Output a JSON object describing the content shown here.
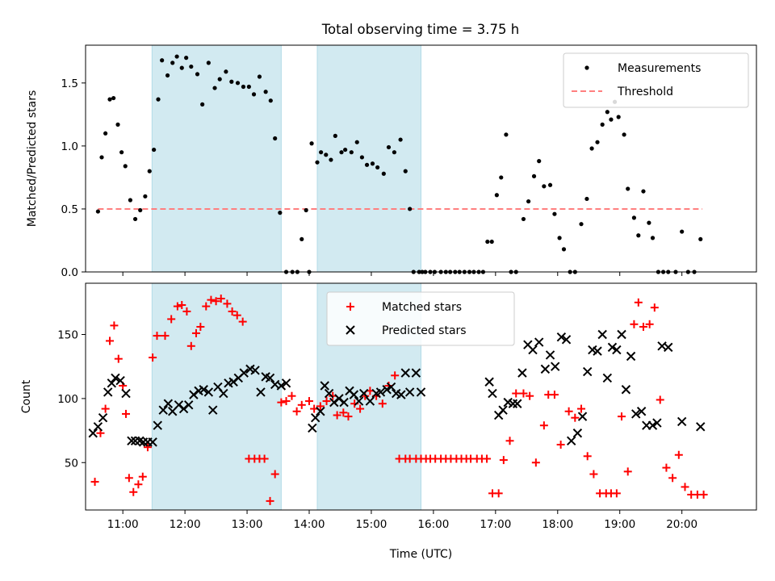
{
  "figure": {
    "title": "Total observing time = 3.75 h"
  },
  "colors": {
    "shade": "#add8e6",
    "measurement": "#000000",
    "threshold": "#ff7f7f",
    "matched": "#ff0000",
    "predicted": "#000000"
  },
  "chart_data": [
    {
      "type": "scatter",
      "ylabel": "Matched/Predicted stars",
      "xlabel": "",
      "xlim": [
        10.4,
        21.2
      ],
      "ylim": [
        0.0,
        1.8
      ],
      "yticks": [
        0.0,
        0.5,
        1.0,
        1.5
      ],
      "xticks": [
        11,
        12,
        13,
        14,
        15,
        16,
        17,
        18,
        19,
        20
      ],
      "shaded_spans": [
        [
          11.47,
          13.55
        ],
        [
          14.13,
          15.8
        ]
      ],
      "legend": {
        "position": "upper right",
        "entries": [
          "Measurements",
          "Threshold"
        ]
      },
      "threshold": {
        "name": "Threshold",
        "x": [
          10.6,
          20.33
        ],
        "y": 0.5
      },
      "series": [
        {
          "name": "Measurements",
          "x": [
            10.6,
            10.66,
            10.72,
            10.79,
            10.85,
            10.92,
            10.98,
            11.04,
            11.12,
            11.2,
            11.28,
            11.36,
            11.43,
            11.5,
            11.57,
            11.63,
            11.72,
            11.8,
            11.87,
            11.95,
            12.02,
            12.1,
            12.2,
            12.28,
            12.38,
            12.48,
            12.56,
            12.66,
            12.75,
            12.85,
            12.94,
            13.03,
            13.11,
            13.2,
            13.3,
            13.38,
            13.45,
            13.53,
            13.63,
            13.73,
            13.81,
            13.88,
            13.95,
            14.0,
            14.04,
            14.13,
            14.19,
            14.27,
            14.35,
            14.42,
            14.52,
            14.58,
            14.68,
            14.77,
            14.85,
            14.93,
            15.02,
            15.1,
            15.2,
            15.28,
            15.37,
            15.47,
            15.55,
            15.62,
            15.68,
            15.77,
            15.82,
            15.87,
            15.95,
            16.02,
            16.12,
            16.2,
            16.27,
            16.35,
            16.42,
            16.5,
            16.58,
            16.65,
            16.73,
            16.8,
            16.87,
            16.94,
            17.02,
            17.09,
            17.17,
            17.25,
            17.33,
            17.45,
            17.53,
            17.62,
            17.7,
            17.78,
            17.88,
            17.95,
            18.03,
            18.1,
            18.2,
            18.28,
            18.38,
            18.47,
            18.55,
            18.64,
            18.72,
            18.8,
            18.86,
            18.92,
            18.98,
            19.07,
            19.13,
            19.23,
            19.3,
            19.38,
            19.47,
            19.53,
            19.62,
            19.7,
            19.78,
            19.9,
            20.0,
            20.1,
            20.2,
            20.3
          ],
          "y": [
            0.48,
            0.91,
            1.1,
            1.37,
            1.38,
            1.17,
            0.95,
            0.84,
            0.57,
            0.42,
            0.49,
            0.6,
            0.8,
            0.97,
            1.37,
            1.68,
            1.56,
            1.66,
            1.71,
            1.62,
            1.7,
            1.63,
            1.57,
            1.33,
            1.66,
            1.46,
            1.53,
            1.59,
            1.51,
            1.5,
            1.47,
            1.47,
            1.41,
            1.55,
            1.43,
            1.36,
            1.06,
            0.47,
            0.0,
            0.0,
            0.0,
            0.26,
            0.49,
            0.0,
            1.02,
            0.87,
            0.95,
            0.93,
            0.89,
            1.08,
            0.95,
            0.97,
            0.95,
            1.03,
            0.91,
            0.85,
            0.86,
            0.83,
            0.78,
            0.99,
            0.95,
            1.05,
            0.8,
            0.5,
            0.0,
            0.0,
            0.0,
            0.0,
            0.0,
            0.0,
            0.0,
            0.0,
            0.0,
            0.0,
            0.0,
            0.0,
            0.0,
            0.0,
            0.0,
            0.0,
            0.24,
            0.24,
            0.61,
            0.75,
            1.09,
            0.0,
            0.0,
            0.42,
            0.56,
            0.76,
            0.88,
            0.68,
            0.69,
            0.46,
            0.27,
            0.18,
            0.0,
            0.0,
            0.38,
            0.58,
            0.98,
            1.03,
            1.17,
            1.27,
            1.21,
            1.35,
            1.23,
            1.09,
            0.66,
            0.43,
            0.29,
            0.64,
            0.39,
            0.27,
            0.0,
            0.0,
            0.0,
            0.0,
            0.32,
            0.0,
            0.0,
            0.26
          ]
        }
      ]
    },
    {
      "type": "scatter",
      "ylabel": "Count",
      "xlabel": "Time (UTC)",
      "xlim": [
        10.4,
        21.2
      ],
      "ylim": [
        13,
        190
      ],
      "yticks": [
        50,
        100,
        150
      ],
      "xticks": [
        11,
        12,
        13,
        14,
        15,
        16,
        17,
        18,
        19,
        20
      ],
      "xticklabels": [
        "11:00",
        "12:00",
        "13:00",
        "14:00",
        "15:00",
        "16:00",
        "17:00",
        "18:00",
        "19:00",
        "20:00"
      ],
      "shaded_spans": [
        [
          11.47,
          13.55
        ],
        [
          14.13,
          15.8
        ]
      ],
      "legend": {
        "position": "upper center",
        "entries": [
          "Matched stars",
          "Predicted stars"
        ]
      },
      "series": [
        {
          "name": "Matched stars",
          "x": [
            10.55,
            10.64,
            10.72,
            10.79,
            10.86,
            10.93,
            11.0,
            11.05,
            11.1,
            11.17,
            11.25,
            11.32,
            11.4,
            11.48,
            11.55,
            11.68,
            11.78,
            11.88,
            11.95,
            12.03,
            12.1,
            12.18,
            12.25,
            12.34,
            12.42,
            12.5,
            12.58,
            12.68,
            12.76,
            12.84,
            12.93,
            13.03,
            13.12,
            13.2,
            13.28,
            13.37,
            13.45,
            13.55,
            13.63,
            13.72,
            13.8,
            13.88,
            14.0,
            14.08,
            14.18,
            14.28,
            14.38,
            14.45,
            14.55,
            14.63,
            14.73,
            14.82,
            14.9,
            14.98,
            15.08,
            15.18,
            15.28,
            15.38,
            15.45,
            15.55,
            15.62,
            15.72,
            15.8,
            15.88,
            15.95,
            16.03,
            16.12,
            16.2,
            16.28,
            16.37,
            16.45,
            16.53,
            16.6,
            16.7,
            16.78,
            16.86,
            16.95,
            17.05,
            17.13,
            17.23,
            17.33,
            17.45,
            17.55,
            17.65,
            17.78,
            17.85,
            17.95,
            18.05,
            18.18,
            18.28,
            18.38,
            18.48,
            18.58,
            18.68,
            18.78,
            18.86,
            18.95,
            19.03,
            19.13,
            19.23,
            19.3,
            19.38,
            19.48,
            19.56,
            19.65,
            19.75,
            19.85,
            19.95,
            20.05,
            20.15,
            20.25,
            20.35
          ],
          "y": [
            35,
            73,
            92,
            145,
            157,
            131,
            110,
            88,
            38,
            27,
            33,
            39,
            62,
            132,
            149,
            149,
            162,
            172,
            173,
            168,
            141,
            151,
            156,
            172,
            177,
            176,
            178,
            174,
            168,
            165,
            160,
            53,
            53,
            53,
            53,
            20,
            41,
            97,
            98,
            102,
            90,
            95,
            98,
            92,
            94,
            98,
            102,
            87,
            89,
            86,
            96,
            92,
            102,
            106,
            102,
            96,
            110,
            118,
            53,
            53,
            53,
            53,
            53,
            53,
            53,
            53,
            53,
            53,
            53,
            53,
            53,
            53,
            53,
            53,
            53,
            53,
            26,
            26,
            52,
            67,
            104,
            104,
            102,
            50,
            79,
            103,
            103,
            64,
            90,
            85,
            92,
            55,
            41,
            26,
            26,
            26,
            26,
            86,
            43,
            158,
            175,
            156,
            158,
            171,
            99,
            46,
            38,
            56,
            31,
            25,
            25,
            25
          ],
          "note_hidden": ""
        },
        {
          "name": "Predicted stars",
          "x": [
            10.52,
            10.6,
            10.68,
            10.76,
            10.82,
            10.88,
            10.96,
            11.05,
            11.14,
            11.2,
            11.27,
            11.33,
            11.4,
            11.48,
            11.56,
            11.65,
            11.73,
            11.8,
            11.9,
            11.98,
            12.06,
            12.14,
            12.22,
            12.3,
            12.38,
            12.45,
            12.53,
            12.62,
            12.7,
            12.78,
            12.86,
            12.95,
            13.05,
            13.13,
            13.22,
            13.3,
            13.37,
            13.45,
            13.55,
            13.63,
            14.05,
            14.1,
            14.18,
            14.25,
            14.32,
            14.4,
            14.48,
            14.56,
            14.65,
            14.72,
            14.8,
            14.88,
            14.98,
            15.08,
            15.15,
            15.25,
            15.32,
            15.4,
            15.48,
            15.55,
            15.62,
            15.72,
            15.8,
            16.9,
            16.95,
            17.05,
            17.12,
            17.2,
            17.28,
            17.35,
            17.43,
            17.52,
            17.6,
            17.7,
            17.8,
            17.88,
            17.96,
            18.06,
            18.14,
            18.22,
            18.32,
            18.4,
            18.48,
            18.56,
            18.64,
            18.72,
            18.8,
            18.88,
            18.95,
            19.03,
            19.1,
            19.18,
            19.26,
            19.35,
            19.43,
            19.53,
            19.6,
            19.68,
            19.78,
            20.0,
            20.3
          ],
          "y": [
            73,
            78,
            85,
            105,
            112,
            116,
            114,
            104,
            67,
            67,
            67,
            66,
            66,
            66,
            79,
            91,
            96,
            90,
            95,
            92,
            95,
            103,
            106,
            107,
            105,
            91,
            109,
            104,
            112,
            113,
            116,
            120,
            123,
            122,
            105,
            117,
            116,
            111,
            110,
            112,
            77,
            85,
            90,
            110,
            104,
            97,
            100,
            97,
            106,
            103,
            98,
            104,
            98,
            104,
            105,
            107,
            109,
            104,
            103,
            120,
            105,
            120,
            105,
            113,
            104,
            87,
            91,
            97,
            96,
            96,
            120,
            142,
            138,
            144,
            123,
            134,
            125,
            148,
            146,
            67,
            73,
            86,
            121,
            138,
            137,
            150,
            116,
            140,
            138,
            150,
            107,
            133,
            88,
            90,
            79,
            79,
            81,
            141,
            140,
            82,
            78
          ]
        }
      ]
    }
  ]
}
